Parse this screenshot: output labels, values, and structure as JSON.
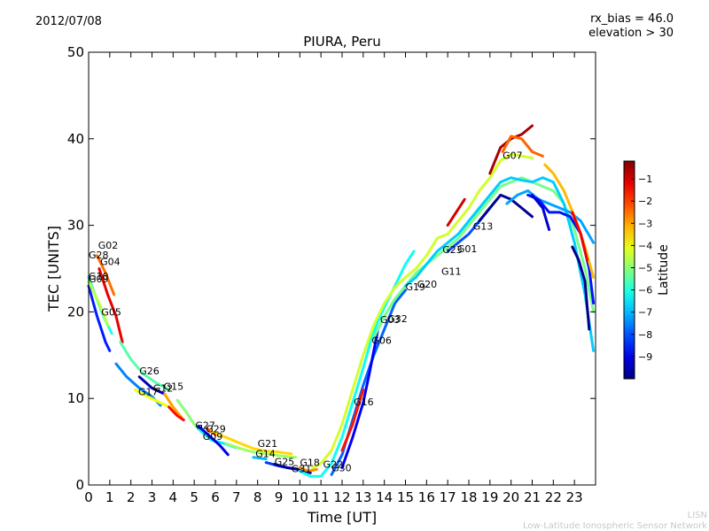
{
  "header": {
    "date": "2012/07/08",
    "rx_bias": "rx_bias = 46.0",
    "elevation": "elevation > 30"
  },
  "footer": {
    "line1": "LISN",
    "line2": "Low-Latitude Ionospheric Sensor Network"
  },
  "chart_data": {
    "type": "scatter",
    "title": "PIURA, Peru",
    "xlabel": "Time [UT]",
    "ylabel": "TEC [UNITS]",
    "xlim": [
      0,
      24
    ],
    "ylim": [
      0,
      50
    ],
    "xticks": [
      "0",
      "1",
      "2",
      "3",
      "4",
      "5",
      "6",
      "7",
      "8",
      "9",
      "10",
      "11",
      "12",
      "13",
      "14",
      "15",
      "16",
      "17",
      "18",
      "19",
      "20",
      "21",
      "22",
      "23"
    ],
    "yticks": [
      "0",
      "10",
      "20",
      "30",
      "40",
      "50"
    ],
    "colorbar": {
      "label": "Latitude",
      "range": [
        -10,
        -0.2
      ],
      "ticks": [
        "-1",
        "-2",
        "-3",
        "-4",
        "-5",
        "-6",
        "-7",
        "-8",
        "-9"
      ]
    },
    "satellite_labels": [
      {
        "name": "G02",
        "x": 0.45,
        "y": 27.3
      },
      {
        "name": "G28",
        "x": 0.0,
        "y": 26.2
      },
      {
        "name": "G04",
        "x": 0.55,
        "y": 25.4
      },
      {
        "name": "G10",
        "x": 0.0,
        "y": 23.7
      },
      {
        "name": "G09",
        "x": 0.0,
        "y": 23.4
      },
      {
        "name": "G05",
        "x": 0.6,
        "y": 19.6
      },
      {
        "name": "G26",
        "x": 2.4,
        "y": 12.8
      },
      {
        "name": "G17",
        "x": 2.35,
        "y": 10.4
      },
      {
        "name": "G12",
        "x": 3.05,
        "y": 10.8
      },
      {
        "name": "G15",
        "x": 3.55,
        "y": 11.0
      },
      {
        "name": "G27",
        "x": 5.05,
        "y": 6.5
      },
      {
        "name": "G29",
        "x": 5.55,
        "y": 6.1
      },
      {
        "name": "G09",
        "x": 5.4,
        "y": 5.2
      },
      {
        "name": "G21",
        "x": 8.0,
        "y": 4.4
      },
      {
        "name": "G14",
        "x": 7.9,
        "y": 3.2
      },
      {
        "name": "G25",
        "x": 8.8,
        "y": 2.3
      },
      {
        "name": "G18",
        "x": 10.0,
        "y": 2.2
      },
      {
        "name": "G31",
        "x": 9.6,
        "y": 1.5
      },
      {
        "name": "G22",
        "x": 11.1,
        "y": 2.0
      },
      {
        "name": "G30",
        "x": 11.5,
        "y": 1.6
      },
      {
        "name": "G16",
        "x": 12.55,
        "y": 9.2
      },
      {
        "name": "G06",
        "x": 13.4,
        "y": 16.3
      },
      {
        "name": "G03",
        "x": 13.8,
        "y": 18.7
      },
      {
        "name": "G32",
        "x": 14.15,
        "y": 18.8
      },
      {
        "name": "G19",
        "x": 15.0,
        "y": 22.5
      },
      {
        "name": "G20",
        "x": 15.55,
        "y": 22.8
      },
      {
        "name": "G11",
        "x": 16.7,
        "y": 24.3
      },
      {
        "name": "G23",
        "x": 16.75,
        "y": 26.8
      },
      {
        "name": "G01",
        "x": 17.45,
        "y": 26.9
      },
      {
        "name": "G13",
        "x": 18.2,
        "y": 29.5
      },
      {
        "name": "G07",
        "x": 19.6,
        "y": 37.7
      }
    ],
    "series": [
      {
        "lat": -6.0,
        "points": [
          [
            0.0,
            24.0
          ],
          [
            0.3,
            22.0
          ],
          [
            0.7,
            19.5
          ],
          [
            1.1,
            17.5
          ]
        ]
      },
      {
        "lat": -8.5,
        "points": [
          [
            0.0,
            23.0
          ],
          [
            0.4,
            19.5
          ],
          [
            0.8,
            16.5
          ],
          [
            1.0,
            15.5
          ]
        ]
      },
      {
        "lat": -2.5,
        "points": [
          [
            0.4,
            26.5
          ],
          [
            0.8,
            24.5
          ],
          [
            1.2,
            22.0
          ]
        ]
      },
      {
        "lat": -1.2,
        "points": [
          [
            0.5,
            25.0
          ],
          [
            0.9,
            22.0
          ],
          [
            1.3,
            19.5
          ],
          [
            1.6,
            16.5
          ]
        ]
      },
      {
        "lat": -4.5,
        "points": [
          [
            0.0,
            23.5
          ],
          [
            0.5,
            21.0
          ],
          [
            0.9,
            18.5
          ]
        ]
      },
      {
        "lat": -5.5,
        "points": [
          [
            1.5,
            16.5
          ],
          [
            2.0,
            14.5
          ],
          [
            2.6,
            12.8
          ],
          [
            3.2,
            11.8
          ],
          [
            3.8,
            11.0
          ]
        ]
      },
      {
        "lat": -7.5,
        "points": [
          [
            1.3,
            14.0
          ],
          [
            1.8,
            12.5
          ],
          [
            2.4,
            11.2
          ],
          [
            3.0,
            10.2
          ],
          [
            3.4,
            9.2
          ]
        ]
      },
      {
        "lat": -4.0,
        "points": [
          [
            2.2,
            11.0
          ],
          [
            2.8,
            10.2
          ],
          [
            3.4,
            9.5
          ],
          [
            4.0,
            8.8
          ]
        ]
      },
      {
        "lat": -9.5,
        "points": [
          [
            2.4,
            12.5
          ],
          [
            3.0,
            11.2
          ],
          [
            3.6,
            10.5
          ]
        ]
      },
      {
        "lat": -3.0,
        "points": [
          [
            3.6,
            10.5
          ],
          [
            4.0,
            9.0
          ],
          [
            4.4,
            7.8
          ]
        ]
      },
      {
        "lat": -1.5,
        "points": [
          [
            3.8,
            9.0
          ],
          [
            4.2,
            8.0
          ],
          [
            4.5,
            7.5
          ]
        ]
      },
      {
        "lat": -5.0,
        "points": [
          [
            4.2,
            9.8
          ],
          [
            4.6,
            8.5
          ],
          [
            5.0,
            7.0
          ],
          [
            5.5,
            5.8
          ],
          [
            6.0,
            5.0
          ]
        ]
      },
      {
        "lat": -6.5,
        "points": [
          [
            5.2,
            6.5
          ],
          [
            5.8,
            5.2
          ],
          [
            6.4,
            4.8
          ],
          [
            7.0,
            4.3
          ]
        ]
      },
      {
        "lat": -9.0,
        "points": [
          [
            5.2,
            6.8
          ],
          [
            5.8,
            5.5
          ],
          [
            6.2,
            4.6
          ],
          [
            6.6,
            3.5
          ]
        ]
      },
      {
        "lat": -2.0,
        "points": [
          [
            5.6,
            6.5
          ],
          [
            6.0,
            5.8
          ]
        ]
      },
      {
        "lat": -3.5,
        "points": [
          [
            5.8,
            6.2
          ],
          [
            6.5,
            5.5
          ],
          [
            7.2,
            4.8
          ],
          [
            7.8,
            4.2
          ],
          [
            8.4,
            3.9
          ],
          [
            9.0,
            3.8
          ],
          [
            9.6,
            3.6
          ]
        ]
      },
      {
        "lat": -4.8,
        "points": [
          [
            6.5,
            4.8
          ],
          [
            7.2,
            4.2
          ],
          [
            7.8,
            3.8
          ],
          [
            8.4,
            3.6
          ],
          [
            9.0,
            3.4
          ],
          [
            9.8,
            3.2
          ]
        ]
      },
      {
        "lat": -7.0,
        "points": [
          [
            7.8,
            3.2
          ],
          [
            8.4,
            3.0
          ]
        ]
      },
      {
        "lat": -8.2,
        "points": [
          [
            8.4,
            2.6
          ],
          [
            9.0,
            2.2
          ],
          [
            9.6,
            1.9
          ],
          [
            10.2,
            1.7
          ]
        ]
      },
      {
        "lat": -9.6,
        "points": [
          [
            8.8,
            2.4
          ],
          [
            9.4,
            2.0
          ],
          [
            10.0,
            1.8
          ],
          [
            10.5,
            1.4
          ]
        ]
      },
      {
        "lat": -2.8,
        "points": [
          [
            10.0,
            2.0
          ],
          [
            10.4,
            1.6
          ],
          [
            10.8,
            1.8
          ]
        ]
      },
      {
        "lat": -6.2,
        "points": [
          [
            10.0,
            1.6
          ],
          [
            10.5,
            1.0
          ],
          [
            11.0,
            1.0
          ],
          [
            11.5,
            2.5
          ],
          [
            12.0,
            5.5
          ],
          [
            12.5,
            9.5
          ],
          [
            13.0,
            13.5
          ],
          [
            13.4,
            17.0
          ],
          [
            13.8,
            19.5
          ],
          [
            14.2,
            21.5
          ],
          [
            14.6,
            23.5
          ],
          [
            15.0,
            25.5
          ],
          [
            15.4,
            27.0
          ]
        ]
      },
      {
        "lat": -4.3,
        "points": [
          [
            10.6,
            2.0
          ],
          [
            11.0,
            2.5
          ],
          [
            11.5,
            4.0
          ],
          [
            12.0,
            7.0
          ],
          [
            12.5,
            11.0
          ],
          [
            13.0,
            15.0
          ],
          [
            13.5,
            18.5
          ],
          [
            14.0,
            21.0
          ],
          [
            14.5,
            22.8
          ],
          [
            15.0,
            24.0
          ],
          [
            15.5,
            25.0
          ],
          [
            16.0,
            26.5
          ],
          [
            16.5,
            28.5
          ],
          [
            17.0,
            29.0
          ],
          [
            17.5,
            30.5
          ],
          [
            18.0,
            32.0
          ],
          [
            18.5,
            34.0
          ],
          [
            19.0,
            35.5
          ],
          [
            19.5,
            37.5
          ],
          [
            20.0,
            38.2
          ],
          [
            20.5,
            38.0
          ],
          [
            21.0,
            37.8
          ]
        ]
      },
      {
        "lat": -7.8,
        "points": [
          [
            11.5,
            1.2
          ],
          [
            12.0,
            3.5
          ],
          [
            12.5,
            7.5
          ],
          [
            13.0,
            11.5
          ],
          [
            13.5,
            15.0
          ],
          [
            14.0,
            18.0
          ],
          [
            14.5,
            21.0
          ],
          [
            15.0,
            22.5
          ]
        ]
      },
      {
        "lat": -8.8,
        "points": [
          [
            12.0,
            2.0
          ],
          [
            12.5,
            5.5
          ],
          [
            13.0,
            9.5
          ],
          [
            13.3,
            13.0
          ],
          [
            13.7,
            18.0
          ]
        ]
      },
      {
        "lat": -1.6,
        "points": [
          [
            12.0,
            4.0
          ],
          [
            12.5,
            7.0
          ],
          [
            13.0,
            11.0
          ]
        ]
      },
      {
        "lat": -5.2,
        "points": [
          [
            13.5,
            17.0
          ],
          [
            14.0,
            19.5
          ],
          [
            14.5,
            21.5
          ],
          [
            15.0,
            23.0
          ],
          [
            15.5,
            24.5
          ],
          [
            16.0,
            25.5
          ],
          [
            16.5,
            26.5
          ],
          [
            17.0,
            27.5
          ],
          [
            17.5,
            28.5
          ],
          [
            18.0,
            30.0
          ],
          [
            18.5,
            31.5
          ],
          [
            19.0,
            33.0
          ],
          [
            19.5,
            34.5
          ],
          [
            20.0,
            35.0
          ],
          [
            20.5,
            35.5
          ],
          [
            21.0,
            35.0
          ],
          [
            21.5,
            34.5
          ],
          [
            22.0,
            34.0
          ],
          [
            22.5,
            32.5
          ],
          [
            23.0,
            29.5
          ],
          [
            23.5,
            25.0
          ],
          [
            23.9,
            20.0
          ]
        ]
      },
      {
        "lat": -6.8,
        "points": [
          [
            15.0,
            23.0
          ],
          [
            15.5,
            24.0
          ],
          [
            16.0,
            25.5
          ],
          [
            16.5,
            27.0
          ],
          [
            17.0,
            28.0
          ],
          [
            17.5,
            29.0
          ],
          [
            18.0,
            30.5
          ],
          [
            18.5,
            32.0
          ],
          [
            19.0,
            33.5
          ],
          [
            19.5,
            35.0
          ],
          [
            20.0,
            35.5
          ],
          [
            20.5,
            35.2
          ],
          [
            21.0,
            35.0
          ],
          [
            21.5,
            35.5
          ],
          [
            22.0,
            35.0
          ],
          [
            22.5,
            32.5
          ],
          [
            23.0,
            28.0
          ],
          [
            23.5,
            22.0
          ],
          [
            23.9,
            15.5
          ]
        ]
      },
      {
        "lat": -1.0,
        "points": [
          [
            17.0,
            30.0
          ],
          [
            17.4,
            31.5
          ],
          [
            17.8,
            33.0
          ]
        ]
      },
      {
        "lat": -8.0,
        "points": [
          [
            17.0,
            27.0
          ],
          [
            17.5,
            28.0
          ],
          [
            18.0,
            29.0
          ],
          [
            18.5,
            30.5
          ],
          [
            19.0,
            32.0
          ]
        ]
      },
      {
        "lat": -9.8,
        "points": [
          [
            18.5,
            30.5
          ],
          [
            19.0,
            32.0
          ],
          [
            19.5,
            33.5
          ],
          [
            20.0,
            33.0
          ],
          [
            20.5,
            32.0
          ],
          [
            21.0,
            31.0
          ]
        ]
      },
      {
        "lat": -0.6,
        "points": [
          [
            19.0,
            36.0
          ],
          [
            19.5,
            39.0
          ],
          [
            20.0,
            40.0
          ],
          [
            20.5,
            40.5
          ],
          [
            21.0,
            41.5
          ]
        ]
      },
      {
        "lat": -2.4,
        "points": [
          [
            19.6,
            38.5
          ],
          [
            20.0,
            40.3
          ],
          [
            20.5,
            40.0
          ],
          [
            21.0,
            38.5
          ],
          [
            21.5,
            38.0
          ]
        ]
      },
      {
        "lat": -7.2,
        "points": [
          [
            19.8,
            32.5
          ],
          [
            20.3,
            33.5
          ],
          [
            20.8,
            34.0
          ],
          [
            21.3,
            33.0
          ],
          [
            21.8,
            32.5
          ],
          [
            22.3,
            32.0
          ],
          [
            22.8,
            31.5
          ],
          [
            23.3,
            30.5
          ],
          [
            23.9,
            28.0
          ]
        ]
      },
      {
        "lat": -8.6,
        "points": [
          [
            20.8,
            33.5
          ],
          [
            21.3,
            33.0
          ],
          [
            21.8,
            31.5
          ],
          [
            22.3,
            31.5
          ],
          [
            22.8,
            31.0
          ],
          [
            23.3,
            29.0
          ],
          [
            23.7,
            25.0
          ],
          [
            23.9,
            21.0
          ]
        ]
      },
      {
        "lat": -9.2,
        "points": [
          [
            21.0,
            33.5
          ],
          [
            21.5,
            32.0
          ],
          [
            21.8,
            29.5
          ]
        ]
      },
      {
        "lat": -3.2,
        "points": [
          [
            21.6,
            37.0
          ],
          [
            22.0,
            36.0
          ],
          [
            22.5,
            34.0
          ],
          [
            23.0,
            31.0
          ],
          [
            23.5,
            27.5
          ],
          [
            23.9,
            24.0
          ]
        ]
      },
      {
        "lat": -1.3,
        "points": [
          [
            22.9,
            31.5
          ],
          [
            23.3,
            29.0
          ],
          [
            23.6,
            26.0
          ]
        ]
      },
      {
        "lat": -9.9,
        "points": [
          [
            22.9,
            27.5
          ],
          [
            23.2,
            26.0
          ],
          [
            23.5,
            23.5
          ],
          [
            23.7,
            18.0
          ]
        ]
      }
    ]
  }
}
